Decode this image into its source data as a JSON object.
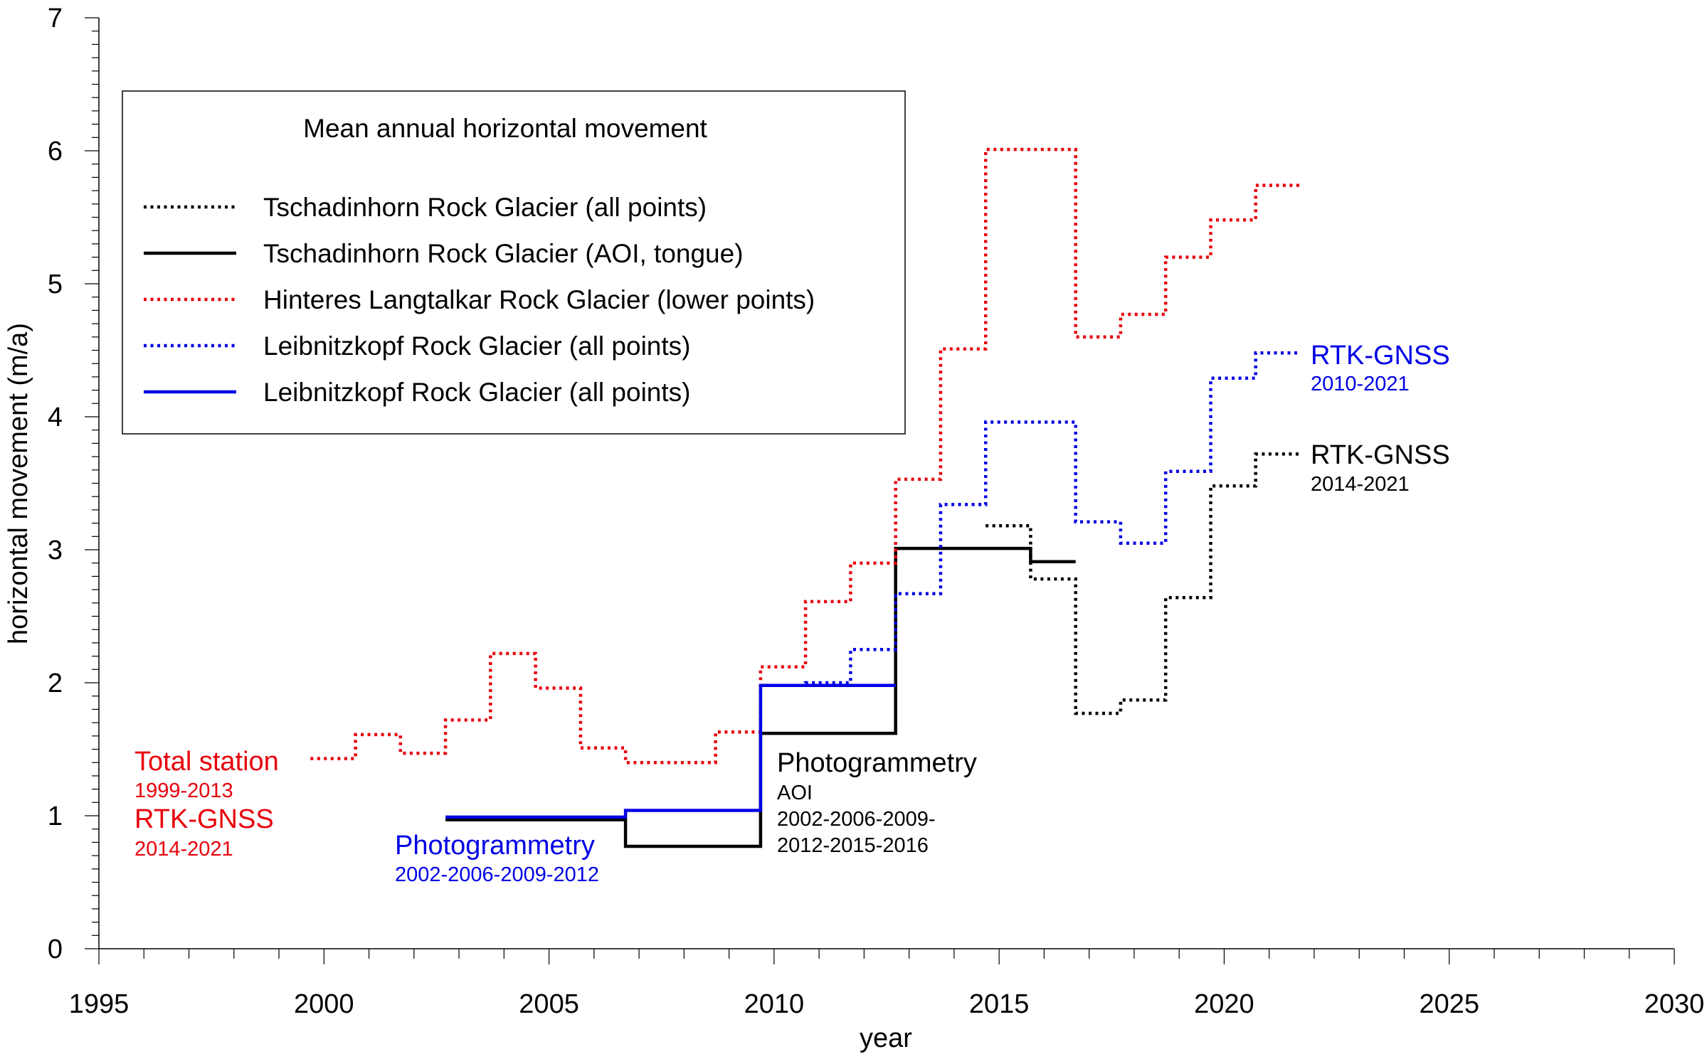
{
  "chart_data": {
    "type": "line",
    "xlabel": "year",
    "ylabel": "horizontal movement (m/a)",
    "xlim": [
      1995,
      2030
    ],
    "ylim": [
      0,
      7
    ],
    "x_ticks": [
      "1995",
      "2000",
      "2005",
      "2010",
      "2015",
      "2020",
      "2025",
      "2030"
    ],
    "y_ticks": [
      "0",
      "1",
      "2",
      "3",
      "4",
      "5",
      "6",
      "7"
    ],
    "legend": {
      "title": "Mean annual horizontal movement",
      "position": "top-left"
    },
    "series": [
      {
        "name": "Tschadinhorn Rock Glacier (all points)",
        "color": "#000000",
        "style": "dotted",
        "steps": [
          {
            "x0": 2014.7,
            "x1": 2015.7,
            "y": 3.18
          },
          {
            "x0": 2015.7,
            "x1": 2016.7,
            "y": 2.78
          },
          {
            "x0": 2016.7,
            "x1": 2017.7,
            "y": 1.77
          },
          {
            "x0": 2017.7,
            "x1": 2018.7,
            "y": 1.87
          },
          {
            "x0": 2018.7,
            "x1": 2019.7,
            "y": 2.64
          },
          {
            "x0": 2019.7,
            "x1": 2020.7,
            "y": 3.48
          },
          {
            "x0": 2020.7,
            "x1": 2021.7,
            "y": 3.72
          }
        ]
      },
      {
        "name": "Tschadinhorn Rock Glacier (AOI, tongue)",
        "color": "#000000",
        "style": "solid",
        "steps": [
          {
            "x0": 2002.7,
            "x1": 2006.7,
            "y": 0.97
          },
          {
            "x0": 2006.7,
            "x1": 2009.7,
            "y": 0.77
          },
          {
            "x0": 2009.7,
            "x1": 2012.7,
            "y": 1.62
          },
          {
            "x0": 2012.7,
            "x1": 2015.7,
            "y": 3.01
          },
          {
            "x0": 2015.7,
            "x1": 2016.7,
            "y": 2.91
          }
        ]
      },
      {
        "name": "Hinteres Langtalkar Rock Glacier (lower points)",
        "color": "#e8000b",
        "style": "dotted",
        "steps": [
          {
            "x0": 1999.7,
            "x1": 2000.7,
            "y": 1.43
          },
          {
            "x0": 2000.7,
            "x1": 2001.7,
            "y": 1.61
          },
          {
            "x0": 2001.7,
            "x1": 2002.7,
            "y": 1.47
          },
          {
            "x0": 2002.7,
            "x1": 2003.7,
            "y": 1.72
          },
          {
            "x0": 2003.7,
            "x1": 2004.7,
            "y": 2.22
          },
          {
            "x0": 2004.7,
            "x1": 2005.7,
            "y": 1.96
          },
          {
            "x0": 2005.7,
            "x1": 2006.7,
            "y": 1.51
          },
          {
            "x0": 2006.7,
            "x1": 2008.7,
            "y": 1.4
          },
          {
            "x0": 2008.7,
            "x1": 2009.7,
            "y": 1.63
          },
          {
            "x0": 2009.7,
            "x1": 2010.7,
            "y": 2.12
          },
          {
            "x0": 2010.7,
            "x1": 2011.7,
            "y": 2.61
          },
          {
            "x0": 2011.7,
            "x1": 2012.7,
            "y": 2.9
          },
          {
            "x0": 2012.7,
            "x1": 2013.7,
            "y": 3.53
          },
          {
            "x0": 2013.7,
            "x1": 2014.7,
            "y": 4.51
          },
          {
            "x0": 2014.7,
            "x1": 2016.7,
            "y": 6.01
          },
          {
            "x0": 2016.7,
            "x1": 2017.7,
            "y": 4.6
          },
          {
            "x0": 2017.7,
            "x1": 2018.7,
            "y": 4.77
          },
          {
            "x0": 2018.7,
            "x1": 2019.7,
            "y": 5.2
          },
          {
            "x0": 2019.7,
            "x1": 2020.7,
            "y": 5.48
          },
          {
            "x0": 2020.7,
            "x1": 2021.7,
            "y": 5.74
          }
        ]
      },
      {
        "name": "Leibnitzkopf Rock Glacier (all points)",
        "color": "#0000e6",
        "style": "dotted",
        "steps": [
          {
            "x0": 2009.7,
            "x1": 2010.7,
            "y": 1.98
          },
          {
            "x0": 2010.7,
            "x1": 2011.7,
            "y": 2.0
          },
          {
            "x0": 2011.7,
            "x1": 2012.7,
            "y": 2.25
          },
          {
            "x0": 2012.7,
            "x1": 2013.7,
            "y": 2.67
          },
          {
            "x0": 2013.7,
            "x1": 2014.7,
            "y": 3.34
          },
          {
            "x0": 2014.7,
            "x1": 2016.7,
            "y": 3.96
          },
          {
            "x0": 2016.7,
            "x1": 2017.7,
            "y": 3.21
          },
          {
            "x0": 2017.7,
            "x1": 2018.7,
            "y": 3.05
          },
          {
            "x0": 2018.7,
            "x1": 2019.7,
            "y": 3.59
          },
          {
            "x0": 2019.7,
            "x1": 2020.7,
            "y": 4.29
          },
          {
            "x0": 2020.7,
            "x1": 2021.7,
            "y": 4.48
          }
        ]
      },
      {
        "name": "Leibnitzkopf Rock Glacier (all points)",
        "color": "#0000e6",
        "style": "solid",
        "steps": [
          {
            "x0": 2002.7,
            "x1": 2006.7,
            "y": 0.99
          },
          {
            "x0": 2006.7,
            "x1": 2009.7,
            "y": 1.04
          },
          {
            "x0": 2009.7,
            "x1": 2012.7,
            "y": 1.98
          }
        ]
      }
    ],
    "annotations": [
      {
        "lines": [
          "Total station",
          "1999-2013",
          "RTK-GNSS",
          "2014-2021"
        ],
        "color": "#e8000b"
      },
      {
        "lines": [
          "Photogrammetry",
          "2002-2006-2009-2012"
        ],
        "color": "#0000e6"
      },
      {
        "lines": [
          "Photogrammetry",
          "AOI",
          "2002-2006-2009-",
          "2012-2015-2016"
        ],
        "color": "#000000"
      },
      {
        "lines": [
          "RTK-GNSS",
          "2010-2021"
        ],
        "color": "#0000e6"
      },
      {
        "lines": [
          "RTK-GNSS",
          "2014-2021"
        ],
        "color": "#000000"
      }
    ]
  }
}
